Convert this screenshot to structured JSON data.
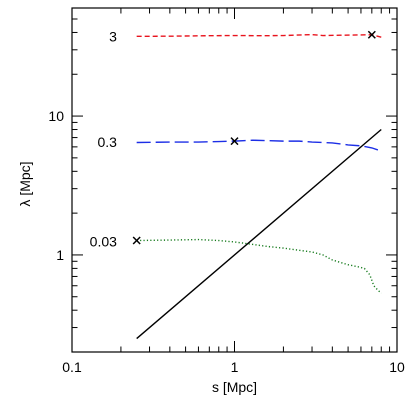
{
  "chart_data": {
    "type": "line",
    "xlabel": "s [Mpc]",
    "ylabel": "λ [Mpc]",
    "x_scale": "log",
    "y_scale": "log",
    "xlim": [
      0.1,
      10
    ],
    "ylim": [
      0.2,
      60
    ],
    "x_ticks": [
      {
        "value": 0.1,
        "label": "0.1"
      },
      {
        "value": 1,
        "label": "1"
      },
      {
        "value": 10,
        "label": "10"
      }
    ],
    "y_ticks": [
      {
        "value": 1,
        "label": "1"
      },
      {
        "value": 10,
        "label": "10"
      }
    ],
    "grid": false,
    "legend": "none",
    "series": [
      {
        "label": "3",
        "color": "#e8141e",
        "dash": "dashed-short",
        "label_anchor": {
          "x": 0.2,
          "y": 37.5
        },
        "marker": {
          "x": 7.0,
          "y": 38.5
        },
        "x": [
          0.25,
          0.4,
          0.7,
          1.0,
          1.5,
          2.0,
          3.0,
          3.5,
          4.5,
          6.0,
          7.0,
          8.0
        ],
        "y": [
          37.5,
          37.6,
          37.9,
          38.0,
          37.9,
          38.0,
          38.6,
          38.0,
          38.2,
          38.4,
          38.5,
          37.0
        ]
      },
      {
        "label": "0.3",
        "color": "#1c2ee6",
        "dash": "dashed-long",
        "label_anchor": {
          "x": 0.2,
          "y": 6.5
        },
        "marker": {
          "x": 1.0,
          "y": 6.6
        },
        "x": [
          0.25,
          0.4,
          0.6,
          0.8,
          1.0,
          1.3,
          1.6,
          2.0,
          2.5,
          3.0,
          4.0,
          5.0,
          6.0,
          7.0,
          8.0
        ],
        "y": [
          6.45,
          6.5,
          6.5,
          6.55,
          6.6,
          6.7,
          6.65,
          6.6,
          6.6,
          6.5,
          6.4,
          6.2,
          6.1,
          5.9,
          5.6
        ]
      },
      {
        "label": "0.03",
        "color": "#157a1c",
        "dash": "dotted",
        "label_anchor": {
          "x": 0.2,
          "y": 1.25
        },
        "marker": {
          "x": 0.25,
          "y": 1.27
        },
        "x": [
          0.25,
          0.4,
          0.6,
          0.8,
          1.0,
          1.3,
          1.6,
          2.0,
          2.5,
          3.0,
          3.5,
          4.0,
          5.0,
          5.8,
          6.3,
          6.8,
          7.2,
          7.6,
          8.0
        ],
        "y": [
          1.27,
          1.28,
          1.29,
          1.27,
          1.24,
          1.19,
          1.15,
          1.12,
          1.08,
          1.05,
          1.0,
          0.92,
          0.85,
          0.82,
          0.8,
          0.72,
          0.6,
          0.56,
          0.53
        ]
      },
      {
        "color": "#000000",
        "dash": "solid",
        "x": [
          0.25,
          8.0
        ],
        "y": [
          0.25,
          8.0
        ]
      }
    ]
  }
}
